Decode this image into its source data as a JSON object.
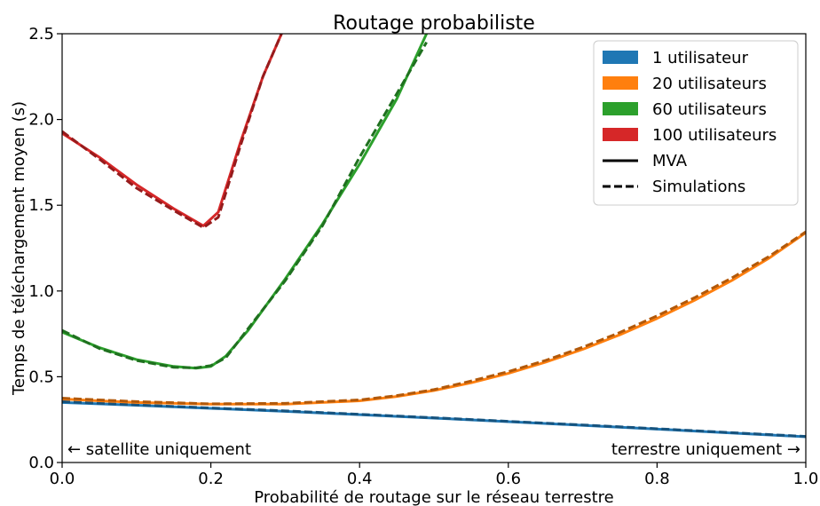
{
  "chart_data": {
    "type": "line",
    "title": "Routage probabiliste",
    "xlabel": "Probabilité de routage sur le réseau terrestre",
    "ylabel": "Temps de téléchargement moyen (s)",
    "xlim": [
      0.0,
      1.0
    ],
    "ylim": [
      0.0,
      2.5
    ],
    "xticks": [
      "0.0",
      "0.2",
      "0.4",
      "0.6",
      "0.8",
      "1.0"
    ],
    "yticks": [
      "0.0",
      "0.5",
      "1.0",
      "1.5",
      "2.0",
      "2.5"
    ],
    "grid": false,
    "legend_position": "top-right",
    "annotations": {
      "left": "← satellite uniquement",
      "right": "terrestre uniquement →"
    },
    "legend": {
      "styles": [
        {
          "name": "MVA",
          "dash": "solid"
        },
        {
          "name": "Simulations",
          "dash": "dashed"
        }
      ]
    },
    "series": [
      {
        "name": "1 utilisateur",
        "color": "#1f77b4",
        "x": [
          0.0,
          0.1,
          0.2,
          0.3,
          0.4,
          0.5,
          0.6,
          0.7,
          0.8,
          0.9,
          1.0
        ],
        "mva": [
          0.35,
          0.334,
          0.316,
          0.298,
          0.279,
          0.259,
          0.238,
          0.217,
          0.195,
          0.172,
          0.15
        ],
        "sim": [
          0.355,
          0.336,
          0.318,
          0.301,
          0.281,
          0.261,
          0.24,
          0.219,
          0.197,
          0.174,
          0.152
        ]
      },
      {
        "name": "20 utilisateurs",
        "color": "#ff7f0e",
        "x": [
          0.0,
          0.1,
          0.2,
          0.3,
          0.4,
          0.45,
          0.5,
          0.55,
          0.6,
          0.65,
          0.7,
          0.75,
          0.8,
          0.85,
          0.9,
          0.95,
          1.0
        ],
        "mva": [
          0.37,
          0.35,
          0.34,
          0.34,
          0.36,
          0.385,
          0.42,
          0.465,
          0.52,
          0.585,
          0.66,
          0.745,
          0.84,
          0.945,
          1.06,
          1.19,
          1.34
        ],
        "sim": [
          0.375,
          0.355,
          0.342,
          0.345,
          0.365,
          0.39,
          0.425,
          0.475,
          0.53,
          0.595,
          0.672,
          0.758,
          0.855,
          0.96,
          1.075,
          1.2,
          1.345
        ]
      },
      {
        "name": "60 utilisateurs",
        "color": "#2ca02c",
        "x": [
          0.0,
          0.05,
          0.1,
          0.15,
          0.18,
          0.2,
          0.22,
          0.25,
          0.3,
          0.35,
          0.4,
          0.45,
          0.49
        ],
        "mva": [
          0.76,
          0.67,
          0.6,
          0.56,
          0.55,
          0.56,
          0.62,
          0.77,
          1.07,
          1.39,
          1.74,
          2.12,
          2.5
        ],
        "sim": [
          0.77,
          0.665,
          0.595,
          0.555,
          0.552,
          0.565,
          0.61,
          0.78,
          1.06,
          1.38,
          1.78,
          2.15,
          2.45
        ]
      },
      {
        "name": "100 utilisateurs",
        "color": "#d62728",
        "x": [
          0.0,
          0.05,
          0.1,
          0.15,
          0.19,
          0.21,
          0.24,
          0.27,
          0.3
        ],
        "mva": [
          1.92,
          1.78,
          1.62,
          1.48,
          1.38,
          1.46,
          1.87,
          2.25,
          2.55
        ],
        "sim": [
          1.93,
          1.77,
          1.6,
          1.47,
          1.37,
          1.43,
          1.85,
          2.25,
          2.55
        ]
      }
    ]
  }
}
